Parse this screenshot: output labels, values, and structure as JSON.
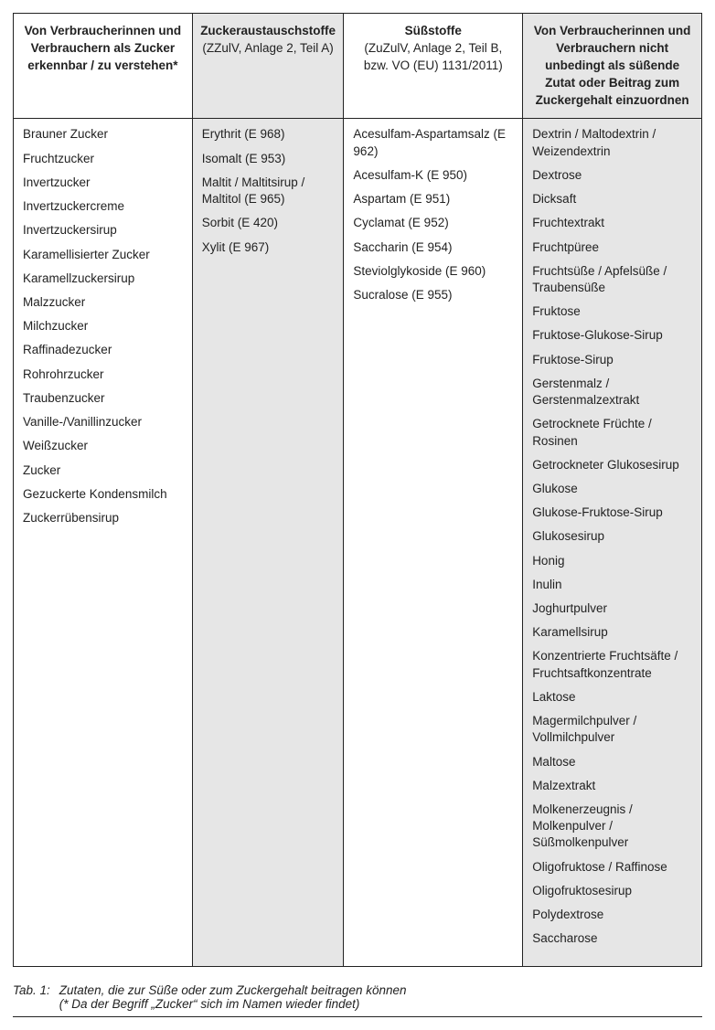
{
  "table": {
    "columns": [
      {
        "title": "Von Verbraucherinnen und Verbrauchern als Zucker erkennbar / zu verstehen*",
        "subtitle": "",
        "shaded": false
      },
      {
        "title": "Zuckeraustauschstoffe",
        "subtitle": "(ZZulV, Anlage 2, Teil A)",
        "shaded": true
      },
      {
        "title": "Süßstoffe",
        "subtitle": "(ZuZulV, Anlage 2, Teil B, bzw. VO (EU) 1131/2011)",
        "shaded": false
      },
      {
        "title": "Von Verbraucherinnen und Verbrauchern nicht unbedingt als süßende Zutat oder Beitrag zum Zuckergehalt einzuordnen",
        "subtitle": "",
        "shaded": true
      }
    ],
    "col0_items": [
      "Brauner Zucker",
      "Fruchtzucker",
      "Invertzucker",
      "Invertzuckercreme",
      "Invertzuckersirup",
      "Karamellisierter Zucker",
      "Karamellzuckersirup",
      "Malzzucker",
      "Milchzucker",
      "Raffinadezucker",
      "Rohrohrzucker",
      "Traubenzucker",
      "Vanille-/Vanillinzucker",
      "Weißzucker",
      "Zucker",
      "Gezuckerte Kondensmilch",
      "Zuckerrübensirup"
    ],
    "col1_items": [
      "Erythrit (E 968)",
      "Isomalt (E 953)",
      "Maltit / Maltitsirup / Maltitol (E 965)",
      "Sorbit (E 420)",
      "Xylit (E 967)"
    ],
    "col2_items": [
      "Acesulfam-Aspartamsalz (E 962)",
      "Acesulfam-K (E 950)",
      "Aspartam (E 951)",
      "Cyclamat (E 952)",
      "Saccharin (E 954)",
      "Steviolglykoside (E 960)",
      "Sucralose (E 955)"
    ],
    "col3_items": [
      "Dextrin / Maltodextrin / Weizendextrin",
      "Dextrose",
      "Dicksaft",
      "Fruchtextrakt",
      "Fruchtpüree",
      "Fruchtsüße / Apfelsüße / Traubensüße",
      "Fruktose",
      "Fruktose-Glukose-Sirup",
      "Fruktose-Sirup",
      "Gerstenmalz / Gerstenmalzextrakt",
      "Getrocknete Früchte / Rosinen",
      "Getrockneter Glukosesirup",
      "Glukose",
      "Glukose-Fruktose-Sirup",
      "Glukosesirup",
      "Honig",
      "Inulin",
      "Joghurtpulver",
      "Karamellsirup",
      "Konzentrierte Fruchtsäfte / Fruchtsaftkonzentrate",
      "Laktose",
      "Magermilchpulver / Vollmilchpulver",
      "Maltose",
      "Malzextrakt",
      "Molkenerzeugnis / Molkenpulver / Süßmolkenpulver",
      "Oligofruktose / Raffinose",
      "Oligofruktosesirup",
      "Polydextrose",
      "Saccharose"
    ]
  },
  "caption": {
    "label": "Tab. 1:",
    "title": "Zutaten, die zur Süße oder zum Zuckergehalt beitragen können",
    "note": "(* Da der Begriff „Zucker“ sich im Namen wieder findet)"
  },
  "style": {
    "column_widths": [
      "26%",
      "22%",
      "26%",
      "26%"
    ],
    "header_font_size": 13.5,
    "cell_font_size": 13.5,
    "border_color": "#222222",
    "shaded_bg": "#e6e6e6",
    "background": "#ffffff",
    "text_color": "#222222"
  }
}
